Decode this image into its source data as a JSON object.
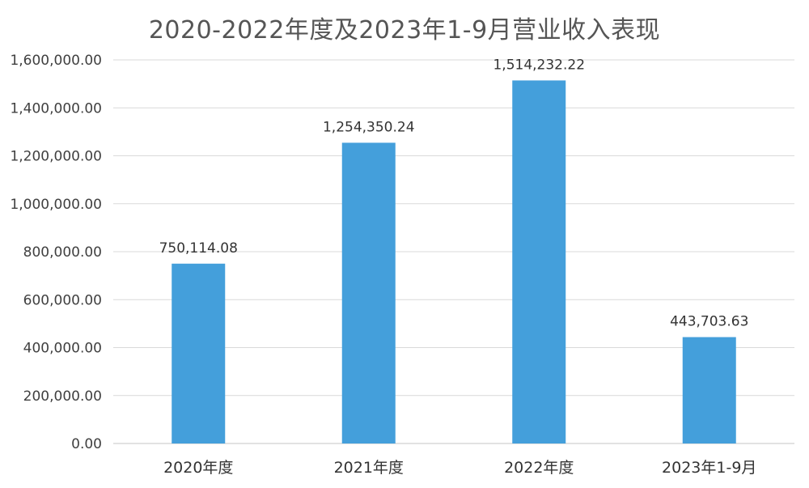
{
  "chart_data": {
    "type": "bar",
    "title": "2020-2022年度及2023年1-9月营业收入表现",
    "xlabel": "",
    "ylabel": "",
    "categories": [
      "2020年度",
      "2021年度",
      "2022年度",
      "2023年1-9月"
    ],
    "values": [
      750114.08,
      1254350.24,
      1514232.22,
      443703.63
    ],
    "value_labels": [
      "750,114.08",
      "1,254,350.24",
      "1,514,232.22",
      "443,703.63"
    ],
    "ylim": [
      0,
      1600000
    ],
    "yticks": [
      0,
      200000,
      400000,
      600000,
      800000,
      1000000,
      1200000,
      1400000,
      1600000
    ],
    "ytick_labels": [
      "0.00",
      "200,000.00",
      "400,000.00",
      "600,000.00",
      "800,000.00",
      "1,000,000.00",
      "1,200,000.00",
      "1,400,000.00",
      "1,600,000.00"
    ],
    "grid": true,
    "legend": "none",
    "colors": {
      "bar": "#449FDB",
      "grid": "#D9D9D9",
      "axis": "#D9D9D9"
    }
  }
}
